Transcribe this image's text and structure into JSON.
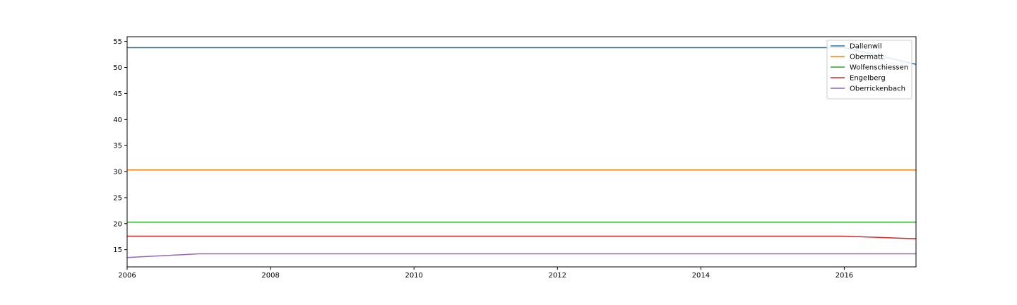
{
  "chart_data": {
    "type": "line",
    "title": "",
    "xlabel": "",
    "ylabel": "",
    "xlim": [
      2006,
      2017
    ],
    "ylim": [
      11.7,
      55.9
    ],
    "x_ticks": [
      2006,
      2008,
      2010,
      2012,
      2014,
      2016
    ],
    "x_tick_labels": [
      "2006",
      "2008",
      "2010",
      "2012",
      "2014",
      "2016"
    ],
    "y_ticks": [
      15,
      20,
      25,
      30,
      35,
      40,
      45,
      50,
      55
    ],
    "y_tick_labels": [
      "15",
      "20",
      "25",
      "30",
      "35",
      "40",
      "45",
      "50",
      "55"
    ],
    "grid": false,
    "legend_position": "top-right",
    "x": [
      2006,
      2007,
      2008,
      2009,
      2010,
      2011,
      2012,
      2013,
      2014,
      2015,
      2016,
      2017
    ],
    "series": [
      {
        "name": "Dallenwil",
        "color": "#1f77b4",
        "values": [
          53.8,
          53.8,
          53.8,
          53.8,
          53.8,
          53.8,
          53.8,
          53.8,
          53.8,
          53.8,
          53.8,
          50.6
        ]
      },
      {
        "name": "Obermatt",
        "color": "#ff7f0e",
        "values": [
          30.3,
          30.3,
          30.3,
          30.3,
          30.3,
          30.3,
          30.3,
          30.3,
          30.3,
          30.3,
          30.3,
          30.3
        ]
      },
      {
        "name": "Wolfenschiessen",
        "color": "#2ca02c",
        "values": [
          20.3,
          20.3,
          20.3,
          20.3,
          20.3,
          20.3,
          20.3,
          20.3,
          20.3,
          20.3,
          20.3,
          20.3
        ]
      },
      {
        "name": "Engelberg",
        "color": "#d62728",
        "values": [
          17.6,
          17.6,
          17.6,
          17.6,
          17.6,
          17.6,
          17.6,
          17.6,
          17.6,
          17.6,
          17.6,
          17.1
        ]
      },
      {
        "name": "Oberrickenbach",
        "color": "#9467bd",
        "values": [
          13.5,
          14.2,
          14.2,
          14.2,
          14.2,
          14.2,
          14.2,
          14.2,
          14.2,
          14.2,
          14.2,
          14.2
        ]
      }
    ]
  }
}
